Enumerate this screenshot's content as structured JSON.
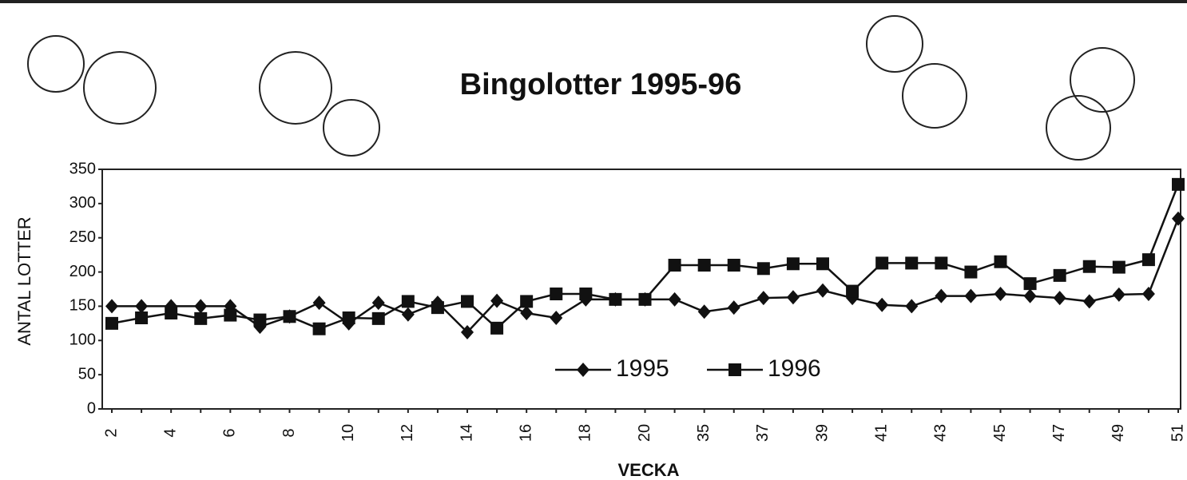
{
  "chart_data": {
    "type": "line",
    "title": "Bingolotter 1995-96",
    "xlabel": "VECKA",
    "ylabel": "ANTAL LOTTER",
    "categories": [
      "2",
      null,
      "4",
      null,
      "6",
      null,
      "8",
      null,
      "10",
      null,
      "12",
      null,
      "14",
      null,
      "16",
      null,
      "18",
      null,
      "20",
      null,
      "35",
      null,
      "37",
      null,
      "39",
      null,
      "41",
      null,
      "43",
      null,
      "45",
      null,
      "47",
      null,
      "49",
      null,
      "51"
    ],
    "series": [
      {
        "name": "1995",
        "color": "#111111",
        "marker": "diamond",
        "values": [
          150,
          150,
          150,
          150,
          150,
          120,
          135,
          155,
          125,
          155,
          138,
          155,
          112,
          158,
          140,
          133,
          160,
          160,
          160,
          160,
          142,
          148,
          162,
          163,
          173,
          162,
          152,
          150,
          165,
          165,
          168,
          165,
          162,
          157,
          167,
          168,
          278
        ]
      },
      {
        "name": "1996",
        "color": "#111111",
        "marker": "square",
        "values": [
          125,
          133,
          140,
          132,
          137,
          130,
          135,
          117,
          133,
          132,
          157,
          148,
          157,
          118,
          157,
          168,
          168,
          160,
          160,
          210,
          210,
          210,
          205,
          212,
          212,
          172,
          213,
          213,
          213,
          200,
          215,
          183,
          195,
          208,
          207,
          218,
          328
        ]
      }
    ],
    "ylim": [
      0,
      350
    ],
    "yticks": [
      0,
      50,
      100,
      150,
      200,
      250,
      300,
      350
    ]
  }
}
